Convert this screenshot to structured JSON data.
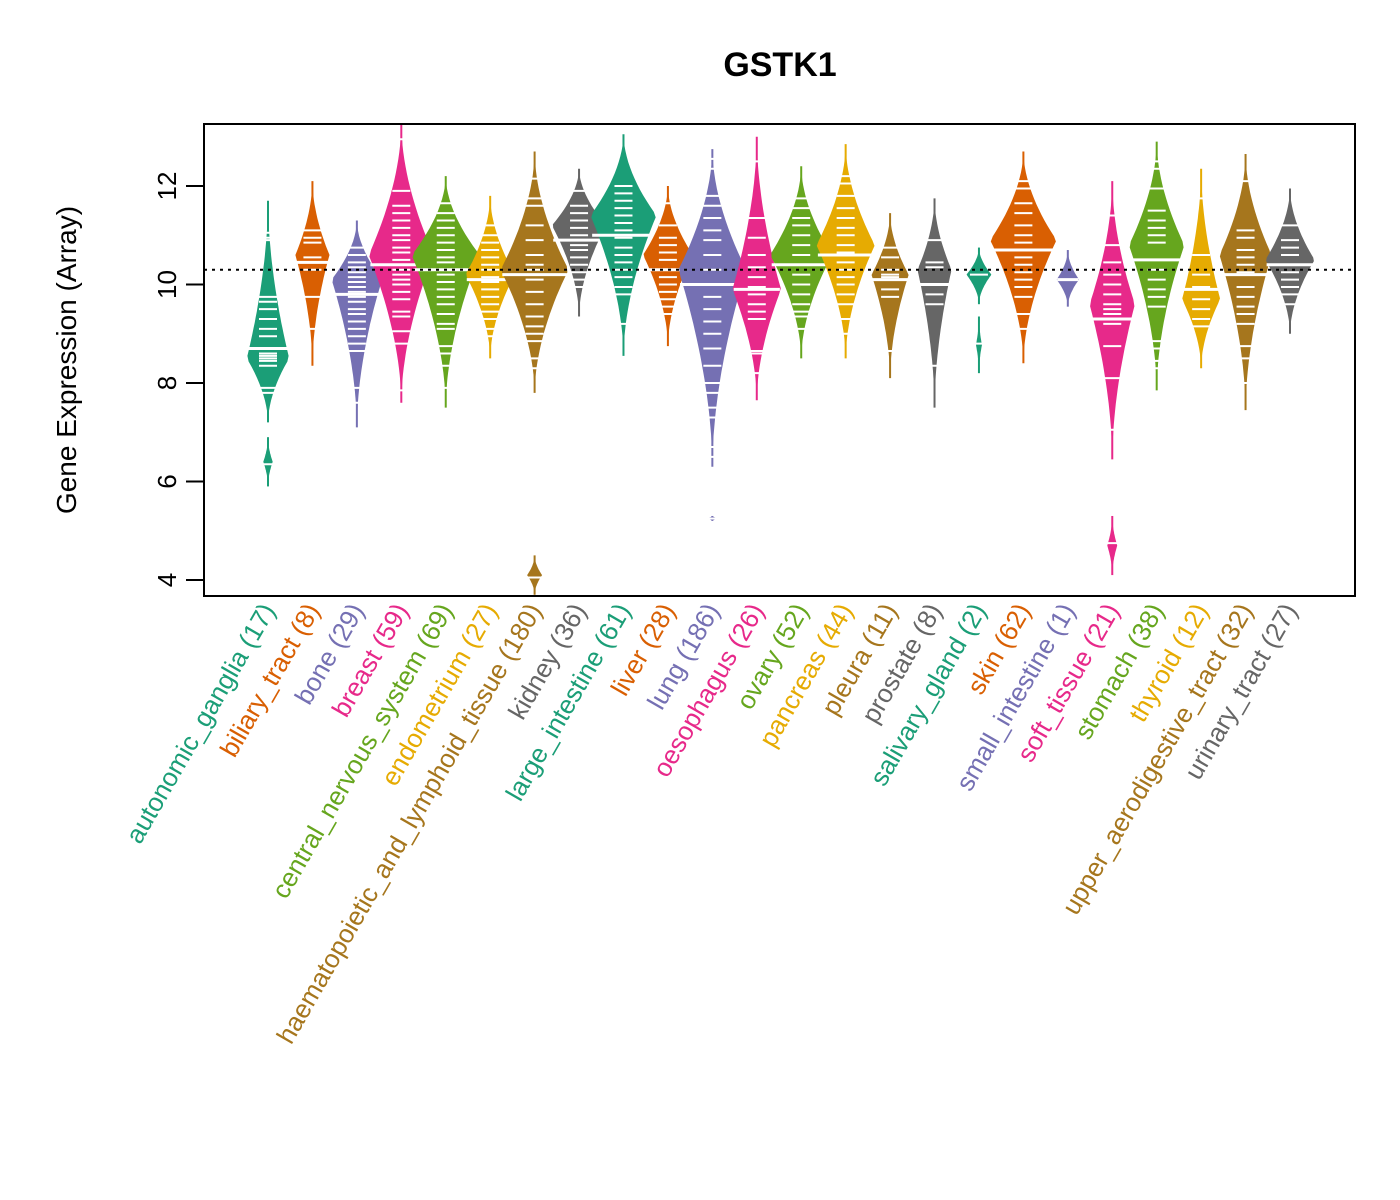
{
  "chart_data": {
    "type": "beanplot",
    "title": "GSTK1",
    "xlabel": "",
    "ylabel": "Gene Expression (Array)",
    "ylim": [
      3.7,
      13.3
    ],
    "yticks": [
      4,
      6,
      8,
      10,
      12
    ],
    "reference_line": {
      "value": 10.3,
      "style": "dotted",
      "color": "#000000"
    },
    "grid": false,
    "legend": "none",
    "categories": [
      {
        "name": "autonomic_ganglia",
        "n": 17,
        "label": "autonomic_ganglia (17)",
        "color": "#1B9E77",
        "min": 5.9,
        "max": 11.7,
        "median": 8.5,
        "mean": 8.7,
        "mode": 8.5,
        "segments": [
          [
            7.2,
            11.7
          ],
          [
            5.9,
            6.9
          ]
        ],
        "points": [
          11.05,
          10.95,
          10.9,
          9.75,
          9.65,
          9.5,
          9.3,
          9.1,
          8.95,
          8.6,
          8.55,
          8.5,
          8.45,
          8.35,
          7.9,
          7.8,
          6.35
        ]
      },
      {
        "name": "biliary_tract",
        "n": 8,
        "label": "biliary_tract (8)",
        "color": "#D95F02",
        "min": 8.35,
        "max": 12.1,
        "median": 10.4,
        "mean": 10.45,
        "mode": 10.6,
        "segments": [
          [
            8.35,
            12.1
          ]
        ],
        "points": [
          11.1,
          10.95,
          10.85,
          10.55,
          10.45,
          10.3,
          9.75,
          9.1
        ]
      },
      {
        "name": "bone",
        "n": 29,
        "label": "bone (29)",
        "color": "#7570B3",
        "min": 7.1,
        "max": 11.3,
        "median": 9.75,
        "mean": 9.8,
        "mode": 10.1,
        "segments": [
          [
            7.1,
            11.3
          ]
        ],
        "points": [
          10.75,
          10.6,
          10.45,
          10.35,
          10.25,
          10.15,
          10.05,
          9.95,
          9.85,
          9.75,
          9.65,
          9.5,
          9.4,
          9.25,
          9.1,
          8.95,
          8.8,
          8.65,
          7.9,
          7.6
        ]
      },
      {
        "name": "breast",
        "n": 59,
        "label": "breast (59)",
        "color": "#E7298A",
        "min": 7.6,
        "max": 13.25,
        "median": 10.5,
        "mean": 10.4,
        "mode": 10.6,
        "segments": [
          [
            7.6,
            13.25
          ]
        ],
        "points": [
          12.95,
          11.9,
          11.6,
          11.45,
          11.3,
          11.15,
          11.0,
          10.9,
          10.75,
          10.65,
          10.5,
          10.4,
          10.3,
          10.2,
          10.1,
          10.0,
          9.85,
          9.7,
          9.45,
          9.35,
          9.05,
          8.8,
          7.85
        ]
      },
      {
        "name": "central_nervous_system",
        "n": 69,
        "label": "central_nervous_system (69)",
        "color": "#66A61E",
        "min": 7.5,
        "max": 12.2,
        "median": 10.35,
        "mean": 10.3,
        "mode": 10.6,
        "segments": [
          [
            7.5,
            12.2
          ]
        ],
        "points": [
          11.65,
          11.45,
          11.3,
          11.15,
          11.0,
          10.85,
          10.7,
          10.55,
          10.45,
          10.3,
          10.2,
          10.05,
          9.9,
          9.75,
          9.6,
          9.4,
          9.2,
          9.1,
          8.75,
          8.6,
          8.35,
          7.9
        ]
      },
      {
        "name": "endometrium",
        "n": 27,
        "label": "endometrium (27)",
        "color": "#E6AB02",
        "min": 8.5,
        "max": 11.8,
        "median": 10.1,
        "mean": 10.1,
        "mode": 10.2,
        "segments": [
          [
            8.5,
            11.8
          ]
        ],
        "points": [
          11.2,
          11.0,
          10.85,
          10.7,
          10.55,
          10.4,
          10.3,
          10.15,
          10.05,
          9.9,
          9.75,
          9.6,
          9.45,
          9.3,
          9.1,
          8.95
        ]
      },
      {
        "name": "haematopoietic_and_lymphoid_tissue",
        "n": 180,
        "label": "haematopoietic_and_lymphoid_tissue (180)",
        "color": "#A6761D",
        "min": 3.7,
        "max": 12.7,
        "median": 10.3,
        "mean": 10.2,
        "mode": 10.3,
        "segments": [
          [
            7.8,
            12.7
          ],
          [
            3.7,
            4.5
          ]
        ],
        "points": [
          12.15,
          11.75,
          11.6,
          11.2,
          10.9,
          10.6,
          10.4,
          10.3,
          10.1,
          9.85,
          9.6,
          9.35,
          9.15,
          9.0,
          8.85,
          8.5,
          8.3,
          4.05
        ]
      },
      {
        "name": "kidney",
        "n": 36,
        "label": "kidney (36)",
        "color": "#666666",
        "min": 9.35,
        "max": 12.35,
        "median": 10.85,
        "mean": 10.9,
        "mode": 11.2,
        "segments": [
          [
            9.35,
            12.35
          ]
        ],
        "points": [
          11.9,
          11.6,
          11.45,
          11.3,
          11.15,
          11.0,
          10.8,
          10.7,
          10.55,
          10.4,
          10.25,
          10.1,
          9.95
        ]
      },
      {
        "name": "large_intestine",
        "n": 61,
        "label": "large_intestine (61)",
        "color": "#1B9E77",
        "min": 8.55,
        "max": 13.05,
        "median": 11.0,
        "mean": 11.0,
        "mode": 11.4,
        "segments": [
          [
            8.55,
            13.05
          ]
        ],
        "points": [
          12.0,
          11.85,
          11.7,
          11.55,
          11.4,
          11.25,
          11.1,
          10.95,
          10.75,
          10.6,
          10.45,
          10.3,
          10.15,
          9.95,
          9.8,
          9.2
        ]
      },
      {
        "name": "liver",
        "n": 28,
        "label": "liver (28)",
        "color": "#D95F02",
        "min": 8.75,
        "max": 12.0,
        "median": 10.3,
        "mean": 10.3,
        "mode": 10.6,
        "segments": [
          [
            8.75,
            12.0
          ]
        ],
        "points": [
          11.65,
          11.2,
          10.95,
          10.8,
          10.65,
          10.5,
          10.3,
          10.15,
          10.0,
          9.85,
          9.7,
          9.55,
          9.4
        ]
      },
      {
        "name": "lung",
        "n": 186,
        "label": "lung (186)",
        "color": "#7570B3",
        "min": 5.25,
        "max": 12.75,
        "median": 10.3,
        "mean": 10.0,
        "mode": 10.3,
        "segments": [
          [
            6.3,
            12.75
          ],
          [
            5.2,
            5.3
          ]
        ],
        "points": [
          12.55,
          12.35,
          11.8,
          11.6,
          11.35,
          11.1,
          10.9,
          10.6,
          10.3,
          10.0,
          9.75,
          9.5,
          9.25,
          9.0,
          8.7,
          8.35,
          8.0,
          7.8,
          7.5,
          7.3,
          6.7,
          6.5,
          5.25
        ]
      },
      {
        "name": "oesophagus",
        "n": 26,
        "label": "oesophagus (26)",
        "color": "#E7298A",
        "min": 7.65,
        "max": 13.0,
        "median": 9.95,
        "mean": 9.9,
        "mode": 9.9,
        "segments": [
          [
            7.65,
            13.0
          ]
        ],
        "points": [
          12.5,
          11.35,
          10.95,
          10.6,
          10.35,
          10.15,
          9.95,
          9.8,
          9.6,
          9.45,
          9.3,
          8.65,
          8.6,
          8.2
        ]
      },
      {
        "name": "ovary",
        "n": 52,
        "label": "ovary (52)",
        "color": "#66A61E",
        "min": 8.5,
        "max": 12.4,
        "median": 10.4,
        "mean": 10.4,
        "mode": 10.6,
        "segments": [
          [
            8.5,
            12.4
          ]
        ],
        "points": [
          11.75,
          11.55,
          11.35,
          11.2,
          11.0,
          10.8,
          10.6,
          10.4,
          10.2,
          10.0,
          9.8,
          9.6,
          9.45,
          9.35,
          9.1
        ]
      },
      {
        "name": "pancreas",
        "n": 44,
        "label": "pancreas (44)",
        "color": "#E6AB02",
        "min": 8.5,
        "max": 12.85,
        "median": 10.7,
        "mean": 10.6,
        "mode": 10.8,
        "segments": [
          [
            8.5,
            12.85
          ]
        ],
        "points": [
          12.2,
          12.05,
          11.8,
          11.55,
          11.35,
          11.15,
          11.0,
          10.8,
          10.65,
          10.45,
          10.3,
          10.15,
          10.0,
          9.8,
          9.6,
          9.3,
          9.0
        ]
      },
      {
        "name": "pleura",
        "n": 11,
        "label": "pleura (11)",
        "color": "#A6761D",
        "min": 8.1,
        "max": 11.45,
        "median": 10.15,
        "mean": 10.1,
        "mode": 10.2,
        "segments": [
          [
            8.1,
            11.45
          ]
        ],
        "points": [
          10.75,
          10.55,
          10.3,
          10.2,
          10.15,
          9.9,
          9.75,
          8.65
        ]
      },
      {
        "name": "prostate",
        "n": 8,
        "label": "prostate (8)",
        "color": "#666666",
        "min": 7.5,
        "max": 11.75,
        "median": 10.25,
        "mean": 10.0,
        "mode": 10.3,
        "segments": [
          [
            7.5,
            11.75
          ]
        ],
        "points": [
          10.9,
          10.45,
          10.35,
          9.8,
          9.6,
          8.35
        ]
      },
      {
        "name": "salivary_gland",
        "n": 2,
        "label": "salivary_gland (2)",
        "color": "#1B9E77",
        "min": 8.2,
        "max": 10.75,
        "median": 9.5,
        "mean": 9.5,
        "mode": 10.2,
        "segments": [
          [
            9.6,
            10.75
          ],
          [
            8.2,
            9.35
          ]
        ],
        "points": [
          10.2,
          8.8
        ]
      },
      {
        "name": "skin",
        "n": 62,
        "label": "skin (62)",
        "color": "#D95F02",
        "min": 8.4,
        "max": 12.7,
        "median": 10.75,
        "mean": 10.7,
        "mode": 10.9,
        "segments": [
          [
            8.4,
            12.7
          ]
        ],
        "points": [
          12.1,
          11.95,
          11.65,
          11.45,
          11.2,
          11.0,
          10.85,
          10.7,
          10.55,
          10.4,
          10.25,
          10.1,
          9.95,
          9.75,
          9.4,
          9.1
        ]
      },
      {
        "name": "small_intestine",
        "n": 1,
        "label": "small_intestine (1)",
        "color": "#7570B3",
        "min": 9.55,
        "max": 10.7,
        "median": 10.1,
        "mean": 10.1,
        "mode": 10.1,
        "segments": [
          [
            9.55,
            10.7
          ]
        ],
        "points": [
          10.1
        ]
      },
      {
        "name": "soft_tissue",
        "n": 21,
        "label": "soft_tissue (21)",
        "color": "#E7298A",
        "min": 4.1,
        "max": 12.1,
        "median": 9.4,
        "mean": 9.3,
        "mode": 9.6,
        "segments": [
          [
            6.45,
            12.1
          ],
          [
            4.1,
            5.3
          ]
        ],
        "points": [
          11.4,
          10.8,
          10.45,
          10.2,
          10.0,
          9.8,
          9.6,
          9.5,
          9.4,
          9.2,
          8.75,
          8.1,
          7.05,
          4.75
        ]
      },
      {
        "name": "stomach",
        "n": 38,
        "label": "stomach (38)",
        "color": "#66A61E",
        "min": 7.85,
        "max": 12.9,
        "median": 10.55,
        "mean": 10.5,
        "mode": 10.8,
        "segments": [
          [
            7.85,
            12.9
          ]
        ],
        "points": [
          12.5,
          12.35,
          11.95,
          11.5,
          11.3,
          11.15,
          11.0,
          10.85,
          10.5,
          10.3,
          10.1,
          9.9,
          9.75,
          9.55,
          8.85,
          8.7,
          8.45,
          8.3
        ]
      },
      {
        "name": "thyroid",
        "n": 12,
        "label": "thyroid (12)",
        "color": "#E6AB02",
        "min": 8.3,
        "max": 12.35,
        "median": 9.9,
        "mean": 9.9,
        "mode": 9.7,
        "segments": [
          [
            8.3,
            12.35
          ]
        ],
        "points": [
          11.75,
          10.6,
          10.2,
          9.95,
          9.7,
          9.5,
          9.3,
          9.15
        ]
      },
      {
        "name": "upper_aerodigestive_tract",
        "n": 32,
        "label": "upper_aerodigestive_tract (32)",
        "color": "#A6761D",
        "min": 7.45,
        "max": 12.65,
        "median": 10.3,
        "mean": 10.2,
        "mode": 10.6,
        "segments": [
          [
            7.45,
            12.65
          ]
        ],
        "points": [
          12.1,
          11.1,
          10.95,
          10.7,
          10.55,
          10.4,
          10.25,
          9.95,
          9.75,
          9.55,
          9.4,
          9.2,
          8.75,
          8.5,
          8.0
        ]
      },
      {
        "name": "urinary_tract",
        "n": 27,
        "label": "urinary_tract (27)",
        "color": "#666666",
        "min": 9.0,
        "max": 11.95,
        "median": 10.45,
        "mean": 10.4,
        "mode": 10.5,
        "segments": [
          [
            9.0,
            11.95
          ]
        ],
        "points": [
          11.2,
          10.9,
          10.75,
          10.6,
          10.4,
          10.25,
          10.1,
          9.95,
          9.8,
          9.6
        ]
      }
    ]
  }
}
